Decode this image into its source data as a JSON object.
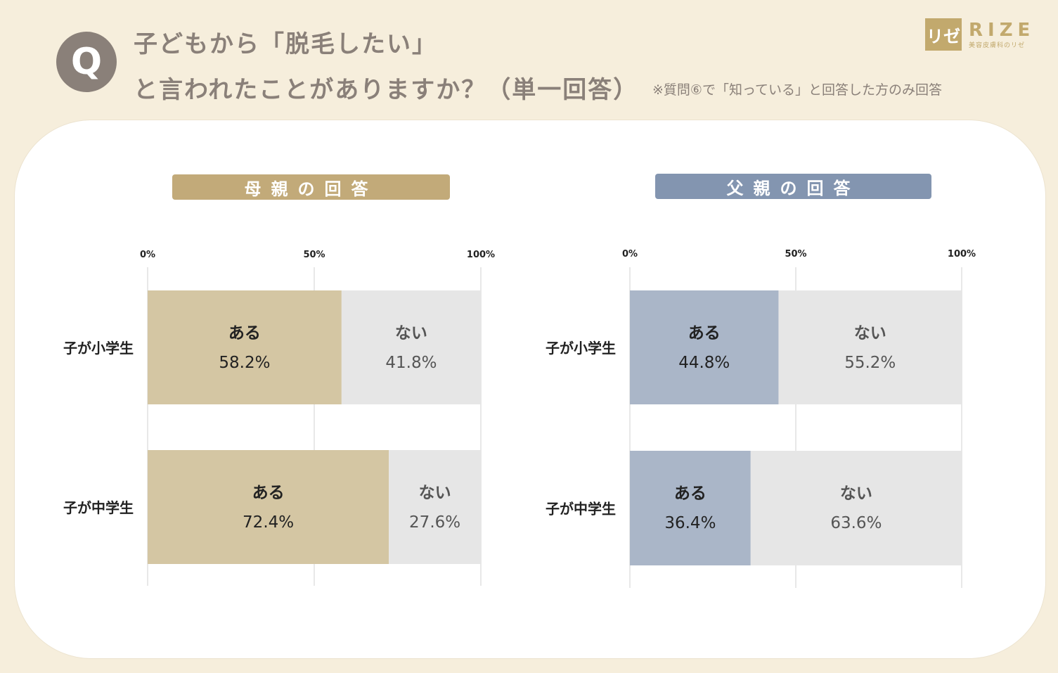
{
  "header": {
    "badge": "Q",
    "title_line1": "子どもから「脱毛したい」",
    "title_line2": "と言われたことがありますか？（単一回答）",
    "note": "※質問⑥で「知っている」と回答した方のみ回答"
  },
  "logo": {
    "mark": "リゼ",
    "word": "RIZE",
    "sub": "美容皮膚科のリゼ"
  },
  "colors": {
    "mother_pill": "#c2aa79",
    "mother_bar": "#d4c6a3",
    "father_pill": "#8395b0",
    "father_bar": "#aab6c8",
    "rest_bar": "#e6e6e6",
    "grid": "#d9d9d9"
  },
  "chart_data": [
    {
      "type": "bar",
      "orientation": "horizontal",
      "stacked": true,
      "title": "母親の回答",
      "categories": [
        "子が小学生",
        "子が中学生"
      ],
      "series": [
        {
          "name": "ある",
          "values": [
            58.2,
            72.4
          ]
        },
        {
          "name": "ない",
          "values": [
            41.8,
            27.6
          ]
        }
      ],
      "ticks": [
        "0%",
        "50%",
        "100%"
      ],
      "xlim": [
        0,
        100
      ],
      "grid": true
    },
    {
      "type": "bar",
      "orientation": "horizontal",
      "stacked": true,
      "title": "父親の回答",
      "categories": [
        "子が小学生",
        "子が中学生"
      ],
      "series": [
        {
          "name": "ある",
          "values": [
            44.8,
            36.4
          ]
        },
        {
          "name": "ない",
          "values": [
            55.2,
            63.6
          ]
        }
      ],
      "ticks": [
        "0%",
        "50%",
        "100%"
      ],
      "xlim": [
        0,
        100
      ],
      "grid": true
    }
  ]
}
